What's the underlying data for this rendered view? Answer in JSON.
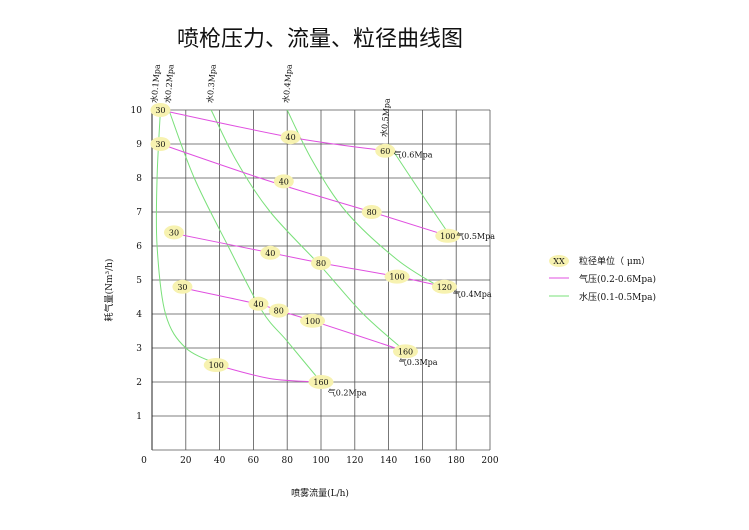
{
  "chart_data": {
    "type": "line",
    "title": "喷枪压力、流量、粒径曲线图",
    "xlabel": "喷雾流量(L/h)",
    "ylabel": "耗气量(Nm³/h)",
    "xlim": [
      0,
      200
    ],
    "ylim": [
      0,
      10
    ],
    "xticks": [
      0,
      20,
      40,
      60,
      80,
      100,
      120,
      140,
      160,
      180,
      200
    ],
    "yticks": [
      1,
      2,
      3,
      4,
      5,
      6,
      7,
      8,
      9,
      10
    ],
    "grid": true,
    "air_color": "#e050e0",
    "water_color": "#7ae07a",
    "marker_color": "#f7f2b0",
    "air_series": [
      {
        "name": "气0.6Mpa",
        "points": [
          [
            5,
            10
          ],
          [
            82,
            9.2
          ],
          [
            138,
            8.8
          ]
        ]
      },
      {
        "name": "气0.5Mpa",
        "points": [
          [
            5,
            9
          ],
          [
            70,
            7.9
          ],
          [
            130,
            7.0
          ],
          [
            175,
            6.3
          ]
        ]
      },
      {
        "name": "气0.4Mpa",
        "points": [
          [
            10,
            6.4
          ],
          [
            70,
            5.8
          ],
          [
            100,
            5.5
          ],
          [
            145,
            5.1
          ],
          [
            173,
            4.8
          ]
        ]
      },
      {
        "name": "气0.3Mpa",
        "points": [
          [
            15,
            4.8
          ],
          [
            62,
            4.3
          ],
          [
            75,
            4.1
          ],
          [
            95,
            3.8
          ],
          [
            150,
            2.9
          ]
        ]
      },
      {
        "name": "气0.2Mpa",
        "points": [
          [
            38,
            2.5
          ],
          [
            70,
            2.1
          ],
          [
            100,
            2.0
          ]
        ]
      }
    ],
    "water_series": [
      {
        "name": "水0.1Mpa",
        "points": [
          [
            5,
            10
          ],
          [
            3,
            8
          ],
          [
            3,
            6
          ],
          [
            8,
            4
          ],
          [
            20,
            3
          ],
          [
            40,
            2.5
          ]
        ]
      },
      {
        "name": "水0.2Mpa",
        "points": [
          [
            10,
            10
          ],
          [
            25,
            8
          ],
          [
            45,
            6
          ],
          [
            65,
            4.1
          ],
          [
            80,
            3.2
          ],
          [
            100,
            2.0
          ]
        ]
      },
      {
        "name": "水0.3Mpa",
        "points": [
          [
            35,
            10
          ],
          [
            50,
            8.5
          ],
          [
            70,
            7
          ],
          [
            100,
            5.4
          ],
          [
            125,
            4.0
          ],
          [
            150,
            2.9
          ]
        ]
      },
      {
        "name": "水0.4Mpa",
        "points": [
          [
            80,
            10
          ],
          [
            95,
            8.5
          ],
          [
            115,
            7
          ],
          [
            145,
            5.6
          ],
          [
            170,
            4.8
          ]
        ]
      },
      {
        "name": "水0.5Mpa",
        "points": [
          [
            140,
            9
          ],
          [
            160,
            7.5
          ],
          [
            175,
            6.4
          ]
        ]
      }
    ],
    "annotations": [
      {
        "text": "30",
        "x": 5,
        "y": 10
      },
      {
        "text": "30",
        "x": 5,
        "y": 9
      },
      {
        "text": "30",
        "x": 13,
        "y": 6.4
      },
      {
        "text": "30",
        "x": 18,
        "y": 4.8
      },
      {
        "text": "40",
        "x": 82,
        "y": 9.2
      },
      {
        "text": "40",
        "x": 78,
        "y": 7.9
      },
      {
        "text": "40",
        "x": 70,
        "y": 5.8
      },
      {
        "text": "40",
        "x": 63,
        "y": 4.3
      },
      {
        "text": "60",
        "x": 138,
        "y": 8.8
      },
      {
        "text": "80",
        "x": 130,
        "y": 7.0
      },
      {
        "text": "80",
        "x": 100,
        "y": 5.5
      },
      {
        "text": "80",
        "x": 75,
        "y": 4.1
      },
      {
        "text": "100",
        "x": 175,
        "y": 6.3
      },
      {
        "text": "100",
        "x": 145,
        "y": 5.1
      },
      {
        "text": "100",
        "x": 95,
        "y": 3.8
      },
      {
        "text": "100",
        "x": 38,
        "y": 2.5
      },
      {
        "text": "120",
        "x": 173,
        "y": 4.8
      },
      {
        "text": "160",
        "x": 150,
        "y": 2.9
      },
      {
        "text": "160",
        "x": 100,
        "y": 2.0
      }
    ],
    "air_labels": [
      {
        "text": "气0.6Mpa",
        "x": 143,
        "y": 8.6
      },
      {
        "text": "气0.5Mpa",
        "x": 180,
        "y": 6.2
      },
      {
        "text": "气0.4Mpa",
        "x": 178,
        "y": 4.5
      },
      {
        "text": "气0.3Mpa",
        "x": 146,
        "y": 2.5
      },
      {
        "text": "气0.2Mpa",
        "x": 104,
        "y": 1.6
      }
    ],
    "water_labels": [
      {
        "text": "水0.1Mpa",
        "x": 1,
        "y": 10.2
      },
      {
        "text": "水0.2Mpa",
        "x": 9,
        "y": 10.2
      },
      {
        "text": "水0.3Mpa",
        "x": 34,
        "y": 10.2
      },
      {
        "text": "水0.4Mpa",
        "x": 79,
        "y": 10.2
      },
      {
        "text": "水0.5Mpa",
        "x": 137,
        "y": 9.2
      }
    ],
    "legend": {
      "position": "right",
      "items": [
        {
          "label": "粒径单位（ μm）",
          "kind": "marker",
          "marker_text": "XX"
        },
        {
          "label": "气压(0.2-0.6Mpa)",
          "kind": "air"
        },
        {
          "label": "水压(0.1-0.5Mpa)",
          "kind": "water"
        }
      ]
    }
  }
}
